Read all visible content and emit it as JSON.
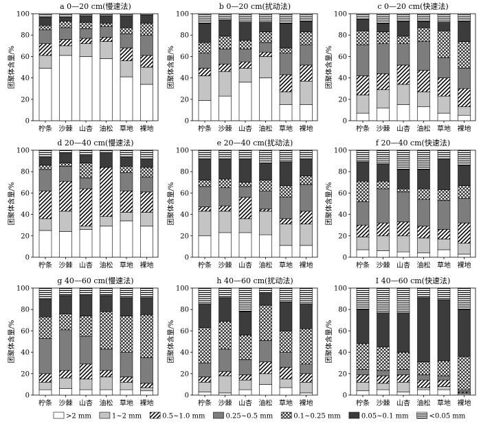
{
  "chart_data": {
    "type": "bar",
    "stacked": true,
    "ylabel": "团聚体含量/%",
    "ylim": [
      0,
      100
    ],
    "yticks": [
      0,
      20,
      40,
      60,
      80,
      100
    ],
    "categories": [
      "柠条",
      "沙棘",
      "山杏",
      "油松",
      "草地",
      "裸地"
    ],
    "legend": {
      "placement": "bottom",
      "entries": [
        {
          "name": ">2 mm",
          "pattern": "white"
        },
        {
          "name": "1~2 mm",
          "pattern": "light-gray"
        },
        {
          "name": "0.5~1.0 mm",
          "pattern": "diagonal-hatch"
        },
        {
          "name": "0.25~0.5 mm",
          "pattern": "medium-gray"
        },
        {
          "name": "0.1~0.25 mm",
          "pattern": "cross-hatch"
        },
        {
          "name": "0.05~0.1 mm",
          "pattern": "dark-gray"
        },
        {
          "name": "<0.05 mm",
          "pattern": "horizontal-stripes"
        }
      ]
    },
    "panels": [
      {
        "title": "a  0—20 cm(慢速法)",
        "series": [
          {
            "name": ">2 mm",
            "values": [
              49,
              61,
              60,
              58,
              41,
              34
            ]
          },
          {
            "name": "1~2 mm",
            "values": [
              12,
              9,
              12,
              16,
              15,
              16
            ]
          },
          {
            "name": "0.5~1.0 mm",
            "values": [
              11,
              6,
              5,
              4,
              12,
              11
            ]
          },
          {
            "name": "0.25~0.5 mm",
            "values": [
              13,
              11,
              9,
              10,
              13,
              19
            ]
          },
          {
            "name": "0.1~0.25 mm",
            "values": [
              4,
              6,
              6,
              3,
              6,
              11
            ]
          },
          {
            "name": "0.05~0.1 mm",
            "values": [
              8,
              4,
              6,
              7,
              11,
              8
            ]
          },
          {
            "name": "<0.05 mm",
            "values": [
              3,
              3,
              2,
              2,
              2,
              1
            ]
          }
        ]
      },
      {
        "title": "b  0—20 cm(扰动法)",
        "series": [
          {
            "name": ">2 mm",
            "values": [
              19,
              23,
              36,
              40,
              15,
              15
            ]
          },
          {
            "name": "1~2 mm",
            "values": [
              23,
              23,
              13,
              20,
              12,
              22
            ]
          },
          {
            "name": "0.5~1.0 mm",
            "values": [
              7,
              7,
              6,
              4,
              16,
              15
            ]
          },
          {
            "name": "0.25~0.5 mm",
            "values": [
              14,
              14,
              12,
              9,
              20,
              19
            ]
          },
          {
            "name": "0.1~0.25 mm",
            "values": [
              10,
              12,
              8,
              10,
              5,
              12
            ]
          },
          {
            "name": "0.05~0.1 mm",
            "values": [
              18,
              15,
              17,
              9,
              23,
              10
            ]
          },
          {
            "name": "<0.05 mm",
            "values": [
              9,
              6,
              8,
              8,
              9,
              7
            ]
          }
        ]
      },
      {
        "title": "c  0—20 cm(快速法)",
        "series": [
          {
            "name": ">2 mm",
            "values": [
              7,
              12,
              15,
              13,
              7,
              5
            ]
          },
          {
            "name": "1~2 mm",
            "values": [
              17,
              17,
              19,
              14,
              16,
              8
            ]
          },
          {
            "name": "0.5~1.0 mm",
            "values": [
              18,
              15,
              18,
              20,
              17,
              17
            ]
          },
          {
            "name": "0.25~0.5 mm",
            "values": [
              29,
              28,
              20,
              27,
              19,
              19
            ]
          },
          {
            "name": "0.1~0.25 mm",
            "values": [
              13,
              11,
              7,
              13,
              25,
              25
            ]
          },
          {
            "name": "0.05~0.1 mm",
            "values": [
              11,
              8,
              14,
              6,
              8,
              19
            ]
          },
          {
            "name": "<0.05 mm",
            "values": [
              5,
              9,
              7,
              7,
              8,
              7
            ]
          }
        ]
      },
      {
        "title": "d  20—40 cm(慢速法)",
        "series": [
          {
            "name": ">2 mm",
            "values": [
              25,
              24,
              26,
              29,
              34,
              29
            ]
          },
          {
            "name": "1~2 mm",
            "values": [
              11,
              19,
              3,
              9,
              8,
              13
            ]
          },
          {
            "name": "0.5~1.0 mm",
            "values": [
              26,
              28,
              35,
              46,
              20,
              19
            ]
          },
          {
            "name": "0.25~0.5 mm",
            "values": [
              20,
              14,
              10,
              0,
              17,
              14
            ]
          },
          {
            "name": "0.1~0.25 mm",
            "values": [
              4,
              3,
              14,
              0,
              6,
              9
            ]
          },
          {
            "name": "0.05~0.1 mm",
            "values": [
              8,
              9,
              7,
              14,
              9,
              8
            ]
          },
          {
            "name": "<0.05 mm",
            "values": [
              6,
              3,
              5,
              2,
              6,
              8
            ]
          }
        ]
      },
      {
        "title": "e  20—40 cm(扰动法)",
        "series": [
          {
            "name": ">2 mm",
            "values": [
              20,
              23,
              23,
              21,
              11,
              11
            ]
          },
          {
            "name": "1~2 mm",
            "values": [
              23,
              20,
              13,
              22,
              20,
              20
            ]
          },
          {
            "name": "0.5~1.0 mm",
            "values": [
              4,
              5,
              20,
              2,
              5,
              12
            ]
          },
          {
            "name": "0.25~0.5 mm",
            "values": [
              19,
              17,
              10,
              17,
              20,
              25
            ]
          },
          {
            "name": "0.1~0.25 mm",
            "values": [
              6,
              8,
              4,
              10,
              11,
              8
            ]
          },
          {
            "name": "0.05~0.1 mm",
            "values": [
              20,
              19,
              22,
              16,
              22,
              16
            ]
          },
          {
            "name": "<0.05 mm",
            "values": [
              8,
              8,
              8,
              12,
              11,
              8
            ]
          }
        ]
      },
      {
        "title": "f  20—40 cm(快速法)",
        "series": [
          {
            "name": ">2 mm",
            "values": [
              7,
              6,
              5,
              4,
              7,
              3
            ]
          },
          {
            "name": "1~2 mm",
            "values": [
              12,
              14,
              15,
              14,
              10,
              10
            ]
          },
          {
            "name": "0.5~1.0 mm",
            "values": [
              11,
              12,
              13,
              11,
              9,
              19
            ]
          },
          {
            "name": "0.25~0.5 mm",
            "values": [
              22,
              32,
              28,
              25,
              27,
              23
            ]
          },
          {
            "name": "0.1~0.25 mm",
            "values": [
              19,
              7,
              3,
              10,
              10,
              12
            ]
          },
          {
            "name": "0.05~0.1 mm",
            "values": [
              18,
              16,
              18,
              18,
              29,
              19
            ]
          },
          {
            "name": "<0.05 mm",
            "values": [
              11,
              13,
              18,
              18,
              8,
              14
            ]
          }
        ]
      },
      {
        "title": "g  40—60 cm(慢速法)",
        "series": [
          {
            "name": ">2 mm",
            "values": [
              5,
              6,
              5,
              5,
              5,
              4
            ]
          },
          {
            "name": "1~2 mm",
            "values": [
              7,
              10,
              10,
              12,
              7,
              3
            ]
          },
          {
            "name": "0.5~1.0 mm",
            "values": [
              8,
              7,
              14,
              6,
              5,
              4
            ]
          },
          {
            "name": "0.25~0.5 mm",
            "values": [
              33,
              38,
              26,
              20,
              23,
              24
            ]
          },
          {
            "name": "0.1~0.25 mm",
            "values": [
              20,
              15,
              19,
              35,
              34,
              40
            ]
          },
          {
            "name": "0.05~0.1 mm",
            "values": [
              17,
              17,
              20,
              15,
              17,
              16
            ]
          },
          {
            "name": "<0.05 mm",
            "values": [
              10,
              7,
              6,
              7,
              9,
              9
            ]
          }
        ]
      },
      {
        "title": "h  40—60 cm(扰动法)",
        "series": [
          {
            "name": ">2 mm",
            "values": [
              3,
              2,
              5,
              10,
              7,
              2
            ]
          },
          {
            "name": "1~2 mm",
            "values": [
              9,
              16,
              9,
              10,
              8,
              10
            ]
          },
          {
            "name": "0.5~1.0 mm",
            "values": [
              5,
              4,
              5,
              11,
              11,
              8
            ]
          },
          {
            "name": "0.25~0.5 mm",
            "values": [
              13,
              21,
              14,
              20,
              14,
              9
            ]
          },
          {
            "name": "0.1~0.25 mm",
            "values": [
              33,
              26,
              23,
              33,
              20,
              33
            ]
          },
          {
            "name": "0.05~0.1 mm",
            "values": [
              22,
              22,
              22,
              11,
              27,
              23
            ]
          },
          {
            "name": "<0.05 mm",
            "values": [
              15,
              9,
              22,
              5,
              13,
              15
            ]
          }
        ]
      },
      {
        "title": "I  40—60 cm(快速法)",
        "series": [
          {
            "name": ">2 mm",
            "values": [
              4,
              5,
              3,
              5,
              5,
              1
            ]
          },
          {
            "name": "1~2 mm",
            "values": [
              8,
              6,
              9,
              2,
              3,
              1
            ]
          },
          {
            "name": "0.5~1.0 mm",
            "values": [
              7,
              7,
              7,
              7,
              6,
              1
            ]
          },
          {
            "name": "0.25~0.5 mm",
            "values": [
              5,
              5,
              5,
              5,
              4,
              2
            ]
          },
          {
            "name": "0.1~0.25 mm",
            "values": [
              24,
              22,
              16,
              12,
              14,
              31
            ]
          },
          {
            "name": "0.05~0.1 mm",
            "values": [
              32,
              32,
              37,
              60,
              57,
              44
            ]
          },
          {
            "name": "<0.05 mm",
            "values": [
              20,
              23,
              23,
              9,
              11,
              20
            ]
          }
        ]
      }
    ]
  }
}
